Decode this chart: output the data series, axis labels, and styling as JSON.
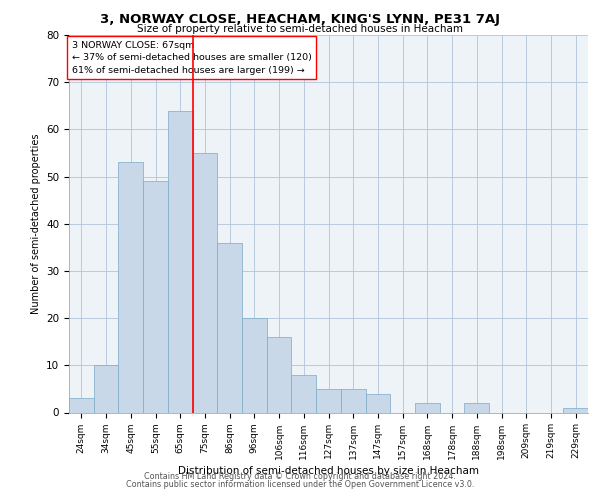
{
  "title": "3, NORWAY CLOSE, HEACHAM, KING'S LYNN, PE31 7AJ",
  "subtitle": "Size of property relative to semi-detached houses in Heacham",
  "xlabel": "Distribution of semi-detached houses by size in Heacham",
  "ylabel": "Number of semi-detached properties",
  "categories": [
    "24sqm",
    "34sqm",
    "45sqm",
    "55sqm",
    "65sqm",
    "75sqm",
    "86sqm",
    "96sqm",
    "106sqm",
    "116sqm",
    "127sqm",
    "137sqm",
    "147sqm",
    "157sqm",
    "168sqm",
    "178sqm",
    "188sqm",
    "198sqm",
    "209sqm",
    "219sqm",
    "229sqm"
  ],
  "values": [
    3,
    10,
    53,
    49,
    64,
    55,
    36,
    20,
    16,
    8,
    5,
    5,
    4,
    0,
    2,
    0,
    2,
    0,
    0,
    0,
    1
  ],
  "bar_color": "#c8d8e8",
  "bar_edge_color": "#7aaac8",
  "property_bin_index": 4,
  "red_line_label": "3 NORWAY CLOSE: 67sqm",
  "pct_smaller": 37,
  "pct_smaller_count": 120,
  "pct_larger": 61,
  "pct_larger_count": 199,
  "ylim": [
    0,
    80
  ],
  "yticks": [
    0,
    10,
    20,
    30,
    40,
    50,
    60,
    70,
    80
  ],
  "grid_color": "#b0c4d8",
  "background_color": "#eef3f8",
  "footer1": "Contains HM Land Registry data © Crown copyright and database right 2024.",
  "footer2": "Contains public sector information licensed under the Open Government Licence v3.0."
}
